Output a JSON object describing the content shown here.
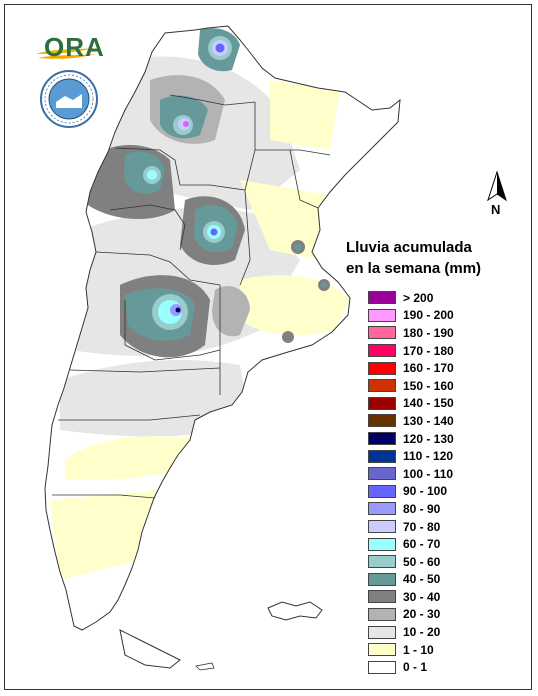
{
  "map": {
    "legend_title_line1": "Lluvia acumulada",
    "legend_title_line2": "en la semana (mm)",
    "north_label": "N",
    "logo_text": "ORA",
    "legend": [
      {
        "label": "> 200",
        "color": "#990099"
      },
      {
        "label": "190 - 200",
        "color": "#ff99ff"
      },
      {
        "label": "180 - 190",
        "color": "#ff6699"
      },
      {
        "label": "170 - 180",
        "color": "#ff0066"
      },
      {
        "label": "160 - 170",
        "color": "#ff0000"
      },
      {
        "label": "150 - 160",
        "color": "#cc3300"
      },
      {
        "label": "140 - 150",
        "color": "#990000"
      },
      {
        "label": "130 - 140",
        "color": "#663300"
      },
      {
        "label": "120 - 130",
        "color": "#000066"
      },
      {
        "label": "110 - 120",
        "color": "#003399"
      },
      {
        "label": "100 - 110",
        "color": "#6666cc"
      },
      {
        "label": "90 - 100",
        "color": "#6666ff"
      },
      {
        "label": "80 - 90",
        "color": "#9999ff"
      },
      {
        "label": "70 - 80",
        "color": "#ccccff"
      },
      {
        "label": "60 - 70",
        "color": "#99ffff"
      },
      {
        "label": "50 - 60",
        "color": "#99cccc"
      },
      {
        "label": "40 - 50",
        "color": "#669999"
      },
      {
        "label": "30 - 40",
        "color": "#808080"
      },
      {
        "label": "20 - 30",
        "color": "#b3b3b3"
      },
      {
        "label": "10 - 20",
        "color": "#e6e6e6"
      },
      {
        "label": "1 - 10",
        "color": "#ffffcc"
      },
      {
        "label": "0 - 1",
        "color": "#ffffff"
      }
    ]
  }
}
